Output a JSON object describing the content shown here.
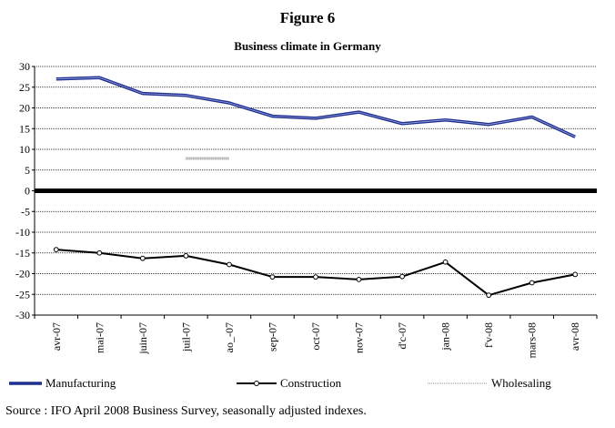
{
  "figure": {
    "title": "Figure 6",
    "subtitle": "Business climate in Germany"
  },
  "source": "Source : IFO April 2008 Business Survey, seasonally adjusted indexes.",
  "chart_data": {
    "type": "line",
    "title": "Business climate in Germany",
    "categories": [
      "avr-07",
      "mai-07",
      "juin-07",
      "juil-07",
      "ao_-07",
      "sep-07",
      "oct-07",
      "nov-07",
      "d'c-07",
      "jan-08",
      "f'v-08",
      "mars-08",
      "avr-08"
    ],
    "yticks": [
      30,
      25,
      20,
      15,
      10,
      5,
      0,
      -5,
      -10,
      -15,
      -20,
      -25,
      -30
    ],
    "ylim": [
      -30,
      30
    ],
    "grid": true,
    "legend_position": "bottom",
    "zero_line": true,
    "series": [
      {
        "name": "Manufacturing",
        "color": "#1f2f8f",
        "style": "thick-line",
        "values": [
          27,
          27.3,
          23.5,
          23,
          21.2,
          18,
          17.5,
          19,
          16.2,
          17.1,
          16,
          17.8,
          13
        ]
      },
      {
        "name": "Construction",
        "color": "#000000",
        "style": "line-with-markers",
        "values": [
          -14.2,
          -15,
          -16.3,
          -15.7,
          -17.8,
          -20.8,
          -20.8,
          -21.4,
          -20.7,
          -17.2,
          -25.2,
          -22.2,
          -20.2
        ]
      },
      {
        "name": "Wholesaling",
        "color": "#888888",
        "style": "dotted",
        "values": [
          null,
          null,
          null,
          7.8,
          7.8,
          null,
          null,
          null,
          null,
          null,
          null,
          null,
          null
        ]
      }
    ]
  }
}
